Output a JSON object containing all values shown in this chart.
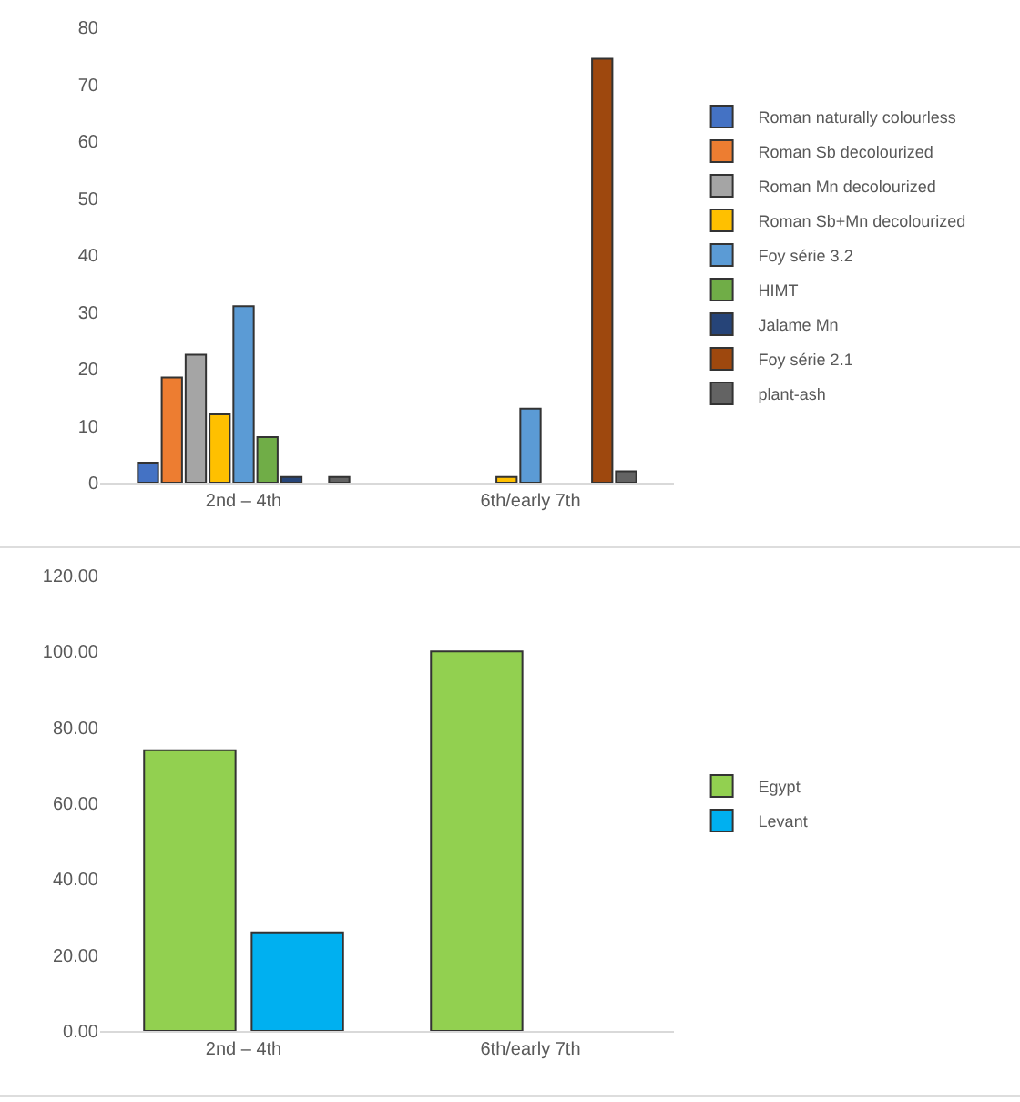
{
  "chart_data": [
    {
      "type": "bar",
      "categories": [
        "2nd – 4th",
        "6th/early 7th"
      ],
      "ylim": [
        0,
        80
      ],
      "yticks": [
        0,
        10,
        20,
        30,
        40,
        50,
        60,
        70,
        80
      ],
      "grid": false,
      "legend": "right",
      "series": [
        {
          "name": "Roman naturally colourless",
          "color": "#4472c4",
          "values": [
            3.5,
            null
          ]
        },
        {
          "name": "Roman Sb decolourized",
          "color": "#ed7d31",
          "values": [
            18.5,
            null
          ]
        },
        {
          "name": "Roman Mn decolourized",
          "color": "#a5a5a5",
          "values": [
            22.5,
            null
          ]
        },
        {
          "name": "Roman Sb+Mn decolourized",
          "color": "#ffc000",
          "values": [
            12,
            1
          ]
        },
        {
          "name": "Foy série 3.2",
          "color": "#5b9bd5",
          "values": [
            31,
            13
          ]
        },
        {
          "name": "HIMT",
          "color": "#70ad47",
          "values": [
            8,
            null
          ]
        },
        {
          "name": "Jalame Mn",
          "color": "#264478",
          "values": [
            1,
            null
          ]
        },
        {
          "name": "Foy série 2.1",
          "color": "#9e480e",
          "values": [
            null,
            74.5
          ]
        },
        {
          "name": "plant-ash",
          "color": "#636363",
          "values": [
            1,
            2
          ]
        }
      ]
    },
    {
      "type": "bar",
      "categories": [
        "2nd – 4th",
        "6th/early 7th"
      ],
      "ylim": [
        0,
        120
      ],
      "yticks": [
        {
          "value": 0,
          "label": "0.00"
        },
        {
          "value": 20,
          "label": "20.00"
        },
        {
          "value": 40,
          "label": "40.00"
        },
        {
          "value": 60,
          "label": "60.00"
        },
        {
          "value": 80,
          "label": "80.00"
        },
        {
          "value": 100,
          "label": "100.00"
        },
        {
          "value": 120,
          "label": "120.00"
        }
      ],
      "grid": false,
      "legend": "right",
      "series": [
        {
          "name": "Egypt",
          "color": "#92d050",
          "values": [
            74,
            100
          ]
        },
        {
          "name": "Levant",
          "color": "#00b0f0",
          "values": [
            26,
            null
          ]
        }
      ]
    }
  ]
}
